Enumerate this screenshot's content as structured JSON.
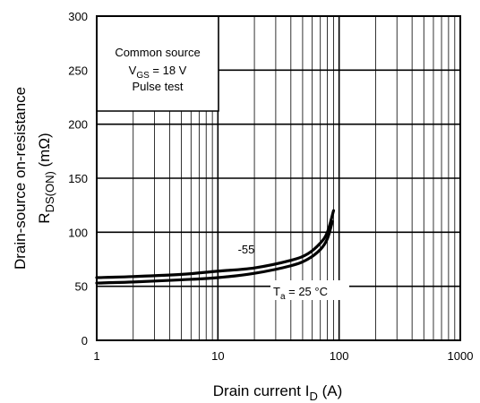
{
  "chart_data": {
    "type": "line",
    "xscale": "log",
    "xlim": [
      1,
      1000
    ],
    "ylim": [
      0,
      300
    ],
    "x_ticks": [
      1,
      10,
      100,
      1000
    ],
    "y_ticks": [
      0,
      50,
      100,
      150,
      200,
      250,
      300
    ],
    "x_tick_labels": [
      "1",
      "10",
      "100",
      "1000"
    ],
    "y_tick_labels": [
      "0",
      "50",
      "100",
      "150",
      "200",
      "250",
      "300"
    ],
    "xlabel": {
      "main": "Drain current  I",
      "sub": "D",
      "unit": "  (A)"
    },
    "ylabel": {
      "line1": "Drain-source on-resistance",
      "main": "R",
      "sub": "DS(ON)",
      "unit": "  (mΩ)"
    },
    "grid": true,
    "annotation_box": {
      "line1": "Common source",
      "line2_main": "V",
      "line2_sub": "GS",
      "line2_rest": " = 18 V",
      "line3": "Pulse test"
    },
    "series": [
      {
        "name": "-55",
        "x": [
          1,
          2,
          5,
          10,
          20,
          40,
          55,
          70,
          80,
          90
        ],
        "y": [
          58,
          59,
          61,
          64,
          67,
          74,
          80,
          90,
          100,
          120
        ]
      },
      {
        "name": "Ta = 25 °C",
        "x": [
          1,
          2,
          5,
          10,
          20,
          40,
          55,
          70,
          80,
          88
        ],
        "y": [
          53,
          54,
          56,
          58,
          62,
          69,
          75,
          84,
          94,
          110
        ]
      }
    ],
    "series_labels": {
      "s1": "-55",
      "s2_main": "T",
      "s2_sub": "a",
      "s2_rest": " = 25 °C"
    }
  }
}
